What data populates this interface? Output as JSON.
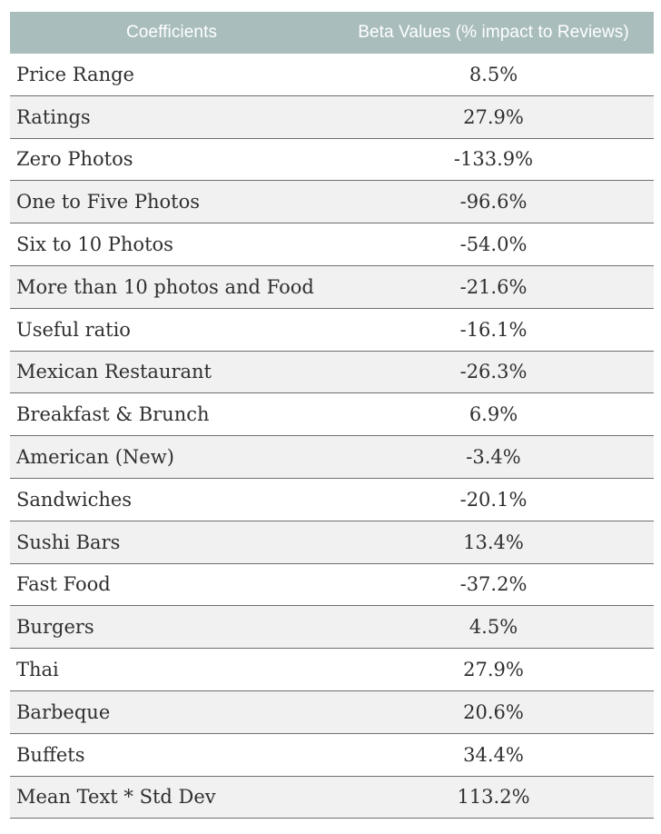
{
  "table": {
    "headers": {
      "coefficient": "Coefficients",
      "beta": "Beta Values (% impact to Reviews)"
    },
    "rows": [
      {
        "name": "Price Range",
        "value": "8.5%"
      },
      {
        "name": "Ratings",
        "value": "27.9%"
      },
      {
        "name": "Zero Photos",
        "value": "-133.9%"
      },
      {
        "name": "One to Five Photos",
        "value": "-96.6%"
      },
      {
        "name": "Six to 10 Photos",
        "value": "-54.0%"
      },
      {
        "name": "More than 10 photos and Food",
        "value": "-21.6%"
      },
      {
        "name": "Useful ratio",
        "value": "-16.1%"
      },
      {
        "name": "Mexican Restaurant",
        "value": "-26.3%"
      },
      {
        "name": "Breakfast & Brunch",
        "value": "6.9%"
      },
      {
        "name": "American (New)",
        "value": "-3.4%"
      },
      {
        "name": "Sandwiches",
        "value": "-20.1%"
      },
      {
        "name": "Sushi Bars",
        "value": "13.4%"
      },
      {
        "name": "Fast Food",
        "value": "-37.2%"
      },
      {
        "name": "Burgers",
        "value": "4.5%"
      },
      {
        "name": "Thai",
        "value": "27.9%"
      },
      {
        "name": "Barbeque",
        "value": "20.6%"
      },
      {
        "name": "Buffets",
        "value": "34.4%"
      },
      {
        "name": "Mean Text * Std Dev",
        "value": "113.2%"
      }
    ]
  }
}
